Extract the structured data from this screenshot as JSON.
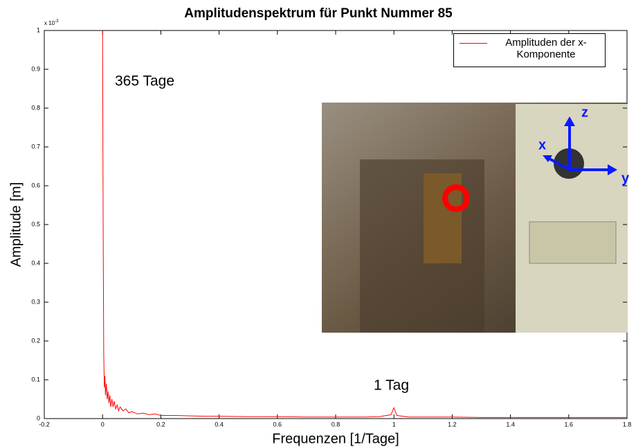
{
  "chart_data": {
    "type": "line",
    "title": "Amplitudenspektrum für Punkt Nummer 85",
    "xlabel": "Frequenzen [1/Tage]",
    "ylabel": "Amplitude [m]",
    "y_scale": {
      "base": "x 10",
      "exponent": "-3"
    },
    "annotations": [
      "365 Tage",
      "1 Tag"
    ],
    "inset_labels": [
      "z",
      "x",
      "y"
    ],
    "xlim": [
      -0.2,
      1.8
    ],
    "xticks": [
      -0.2,
      0,
      0.2,
      0.4,
      0.6,
      0.8,
      1,
      1.2,
      1.4,
      1.6,
      1.8
    ],
    "ylim": [
      0,
      1
    ],
    "yticks": [
      0,
      0.1,
      0.2,
      0.3,
      0.4,
      0.5,
      0.6,
      0.7,
      0.8,
      0.9,
      1
    ],
    "x": [
      0,
      0.002,
      0.004,
      0.006,
      0.008,
      0.01,
      0.013,
      0.016,
      0.019,
      0.022,
      0.025,
      0.028,
      0.032,
      0.036,
      0.04,
      0.045,
      0.05,
      0.055,
      0.06,
      0.07,
      0.08,
      0.09,
      0.1,
      0.12,
      0.14,
      0.16,
      0.18,
      0.2,
      0.25,
      0.3,
      0.35,
      0.4,
      0.5,
      0.6,
      0.7,
      0.8,
      0.9,
      0.95,
      0.99,
      1,
      1.01,
      1.05,
      1.1,
      1.2,
      1.3,
      1.4,
      1.5,
      1.6,
      1.7,
      1.8
    ],
    "series": [
      {
        "name": "Amplituden der x-Komponente",
        "color": "#ff0000",
        "values": [
          1,
          0.5,
          0.17,
          0.08,
          0.11,
          0.06,
          0.09,
          0.05,
          0.07,
          0.04,
          0.06,
          0.03,
          0.05,
          0.03,
          0.045,
          0.025,
          0.035,
          0.02,
          0.03,
          0.02,
          0.025,
          0.015,
          0.018,
          0.012,
          0.014,
          0.01,
          0.012,
          0.008,
          0.008,
          0.007,
          0.006,
          0.006,
          0.005,
          0.005,
          0.004,
          0.004,
          0.004,
          0.005,
          0.01,
          0.028,
          0.008,
          0.004,
          0.004,
          0.004,
          0.003,
          0.003,
          0.003,
          0.003,
          0.003,
          0.003
        ]
      }
    ]
  }
}
